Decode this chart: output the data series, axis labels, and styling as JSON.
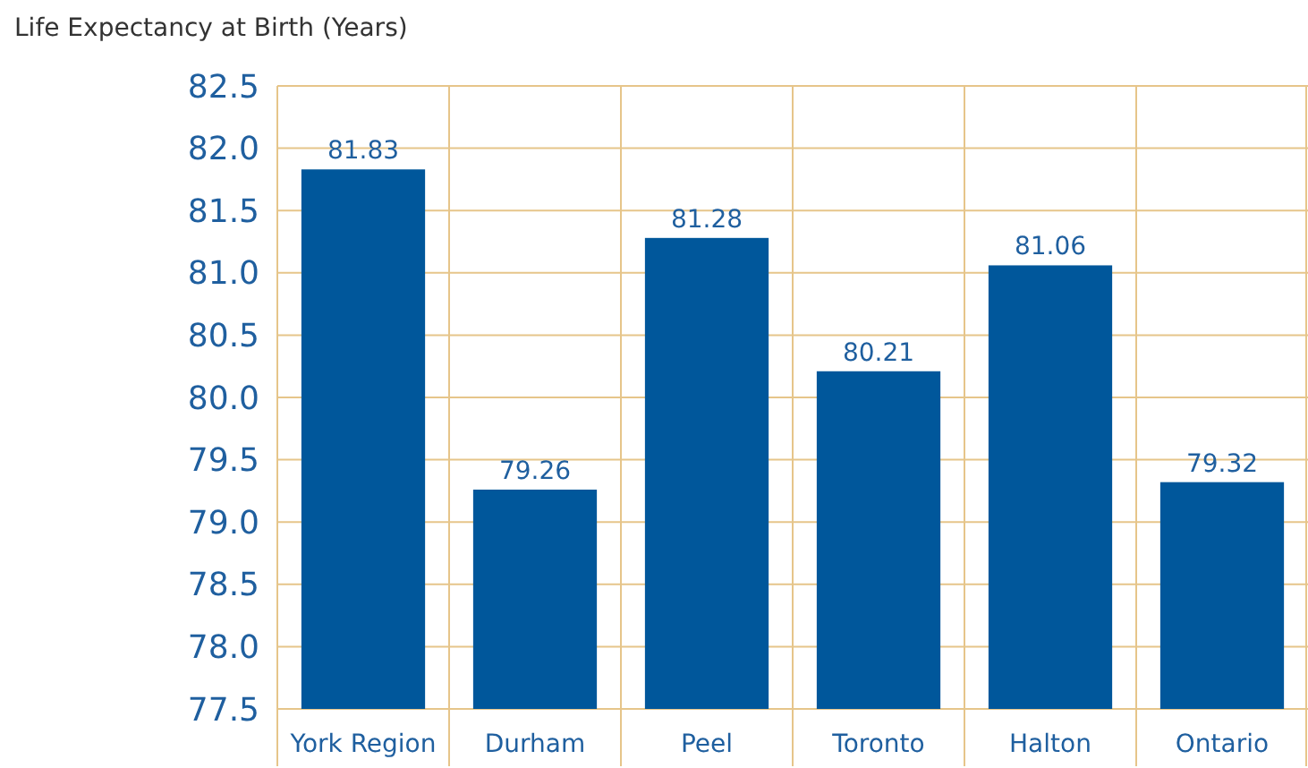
{
  "chart_data": {
    "type": "bar",
    "title": "Life Expectancy at Birth (Years)",
    "categories": [
      "York Region",
      "Durham",
      "Peel",
      "Toronto",
      "Halton",
      "Ontario"
    ],
    "values": [
      81.83,
      79.26,
      81.28,
      80.21,
      81.06,
      79.32
    ],
    "color": "#00579b",
    "ylim": [
      77.5,
      82.5
    ],
    "yticks": [
      77.5,
      {
        "value": 78,
        "label": "78.0"
      },
      78.5,
      {
        "value": 79,
        "label": "79.0"
      },
      79.5,
      {
        "value": 80,
        "label": "80.0"
      },
      80.5,
      {
        "value": 81,
        "label": "81.0"
      },
      81.5,
      {
        "value": 82,
        "label": "82.0"
      },
      82.5
    ],
    "grid": true,
    "data_labels": true
  }
}
